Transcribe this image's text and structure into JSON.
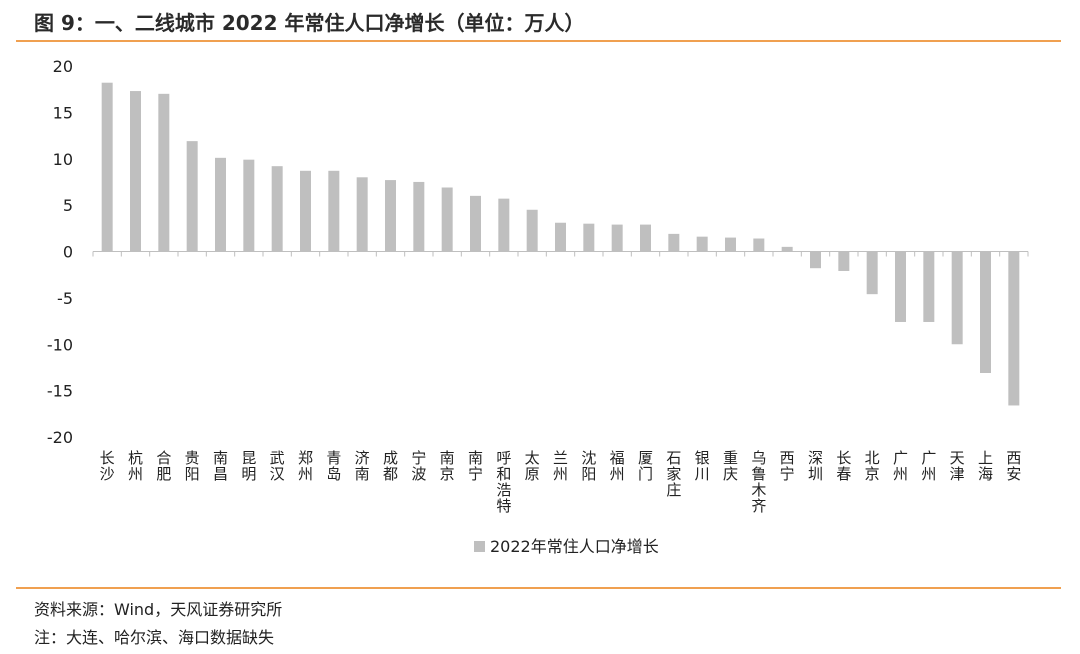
{
  "figure": {
    "title": "图 9：一、二线城市 2022 年常住人口净增长（单位：万人）",
    "source": "资料来源：Wind，天风证券研究所",
    "note": "注：大连、哈尔滨、海口数据缺失"
  },
  "colors": {
    "bar": "#bfbfbf",
    "accent_rule": "#f0a050",
    "axis": "#bfbfbf"
  },
  "chart_data": {
    "type": "bar",
    "title": "",
    "xlabel": "",
    "ylabel": "",
    "ylim": [
      -20,
      20
    ],
    "yticks": [
      20,
      15,
      10,
      5,
      0,
      -5,
      -10,
      -15,
      -20
    ],
    "grid": false,
    "legend_position": "bottom",
    "categories": [
      "长沙",
      "杭州",
      "合肥",
      "贵阳",
      "南昌",
      "昆明",
      "武汉",
      "郑州",
      "青岛",
      "济南",
      "成都",
      "宁波",
      "南京",
      "南宁",
      "呼和浩特",
      "太原",
      "兰州",
      "沈阳",
      "福州",
      "厦门",
      "石家庄",
      "银川",
      "重庆",
      "乌鲁木齐",
      "西宁",
      "深圳",
      "长春",
      "北京",
      "广州",
      "广州",
      "天津",
      "上海",
      "西安"
    ],
    "series": [
      {
        "name": "2022年常住人口净增长",
        "values": [
          18.2,
          17.3,
          17.0,
          11.9,
          10.1,
          9.9,
          9.2,
          8.7,
          8.7,
          8.0,
          7.7,
          7.5,
          6.9,
          6.0,
          5.7,
          4.5,
          3.1,
          3.0,
          2.9,
          2.9,
          1.9,
          1.6,
          1.5,
          1.4,
          0.5,
          -1.8,
          -2.1,
          -4.6,
          -7.6,
          -7.6,
          -10.0,
          -13.1,
          -16.6
        ]
      }
    ]
  }
}
